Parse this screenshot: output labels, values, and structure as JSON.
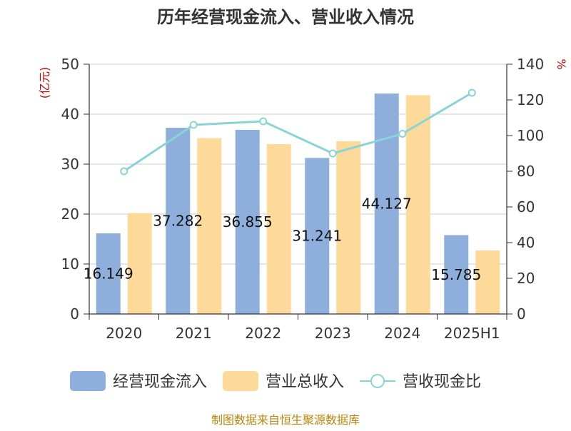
{
  "chart_data": {
    "type": "bar",
    "title": "历年经营现金流入、营业收入情况",
    "categories": [
      "2020",
      "2021",
      "2022",
      "2023",
      "2024",
      "2025H1"
    ],
    "y_left": {
      "unit": "(亿元)",
      "min": 0,
      "max": 50,
      "ticks": [
        "0",
        "10",
        "20",
        "30",
        "40",
        "50"
      ]
    },
    "y_right": {
      "unit": "%",
      "min": 0,
      "max": 140,
      "ticks": [
        "0",
        "20",
        "40",
        "60",
        "80",
        "100",
        "120",
        "140"
      ]
    },
    "grid": true,
    "legend_position": "bottom",
    "series": [
      {
        "name": "经营现金流入",
        "type": "bar",
        "axis": "left",
        "color": "#8eaedb",
        "values": [
          16.149,
          37.282,
          36.855,
          31.241,
          44.127,
          15.785
        ],
        "labels": [
          "16.149",
          "37.282",
          "36.855",
          "31.241",
          "44.127",
          "15.785"
        ]
      },
      {
        "name": "营业总收入",
        "type": "bar",
        "axis": "left",
        "color": "#fdd99a",
        "values": [
          20.2,
          35.2,
          34.0,
          34.6,
          43.8,
          12.7
        ]
      },
      {
        "name": "营收现金比",
        "type": "line",
        "axis": "right",
        "color": "#8ad4d8",
        "values": [
          80,
          106,
          108,
          90,
          101,
          124
        ]
      }
    ]
  },
  "source": "制图数据来自恒生聚源数据库"
}
